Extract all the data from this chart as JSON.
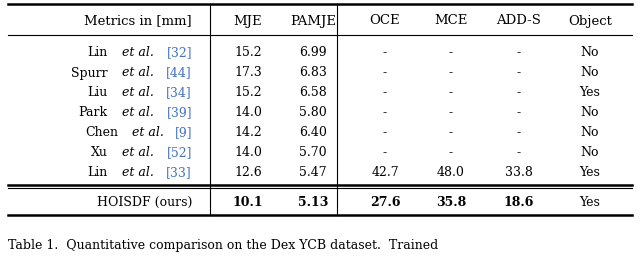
{
  "header": [
    "Metrics in [mm]",
    "MJE",
    "PAMJE",
    "OCE",
    "MCE",
    "ADD-S",
    "Object"
  ],
  "rows": [
    [
      "Lin",
      "et al.",
      "[32]",
      "15.2",
      "6.99",
      "-",
      "-",
      "-",
      "No"
    ],
    [
      "Spurr",
      "et al.",
      "[44]",
      "17.3",
      "6.83",
      "-",
      "-",
      "-",
      "No"
    ],
    [
      "Liu",
      "et al.",
      "[34]",
      "15.2",
      "6.58",
      "-",
      "-",
      "-",
      "Yes"
    ],
    [
      "Park",
      "et al.",
      "[39]",
      "14.0",
      "5.80",
      "-",
      "-",
      "-",
      "No"
    ],
    [
      "Chen",
      "et al.",
      "[9]",
      "14.2",
      "6.40",
      "-",
      "-",
      "-",
      "No"
    ],
    [
      "Xu",
      "et al.",
      "[52]",
      "14.0",
      "5.70",
      "-",
      "-",
      "-",
      "No"
    ],
    [
      "Lin",
      "et al.",
      "[33]",
      "12.6",
      "5.47",
      "42.7",
      "48.0",
      "33.8",
      "Yes"
    ]
  ],
  "last_row": [
    "HOISDF (ours)",
    "10.1",
    "5.13",
    "27.6",
    "35.8",
    "18.6",
    "Yes"
  ],
  "ref_color": "#4472C4",
  "caption": "Table 1.  Quantitative comparison on the Dex YCB dataset.  Trained"
}
